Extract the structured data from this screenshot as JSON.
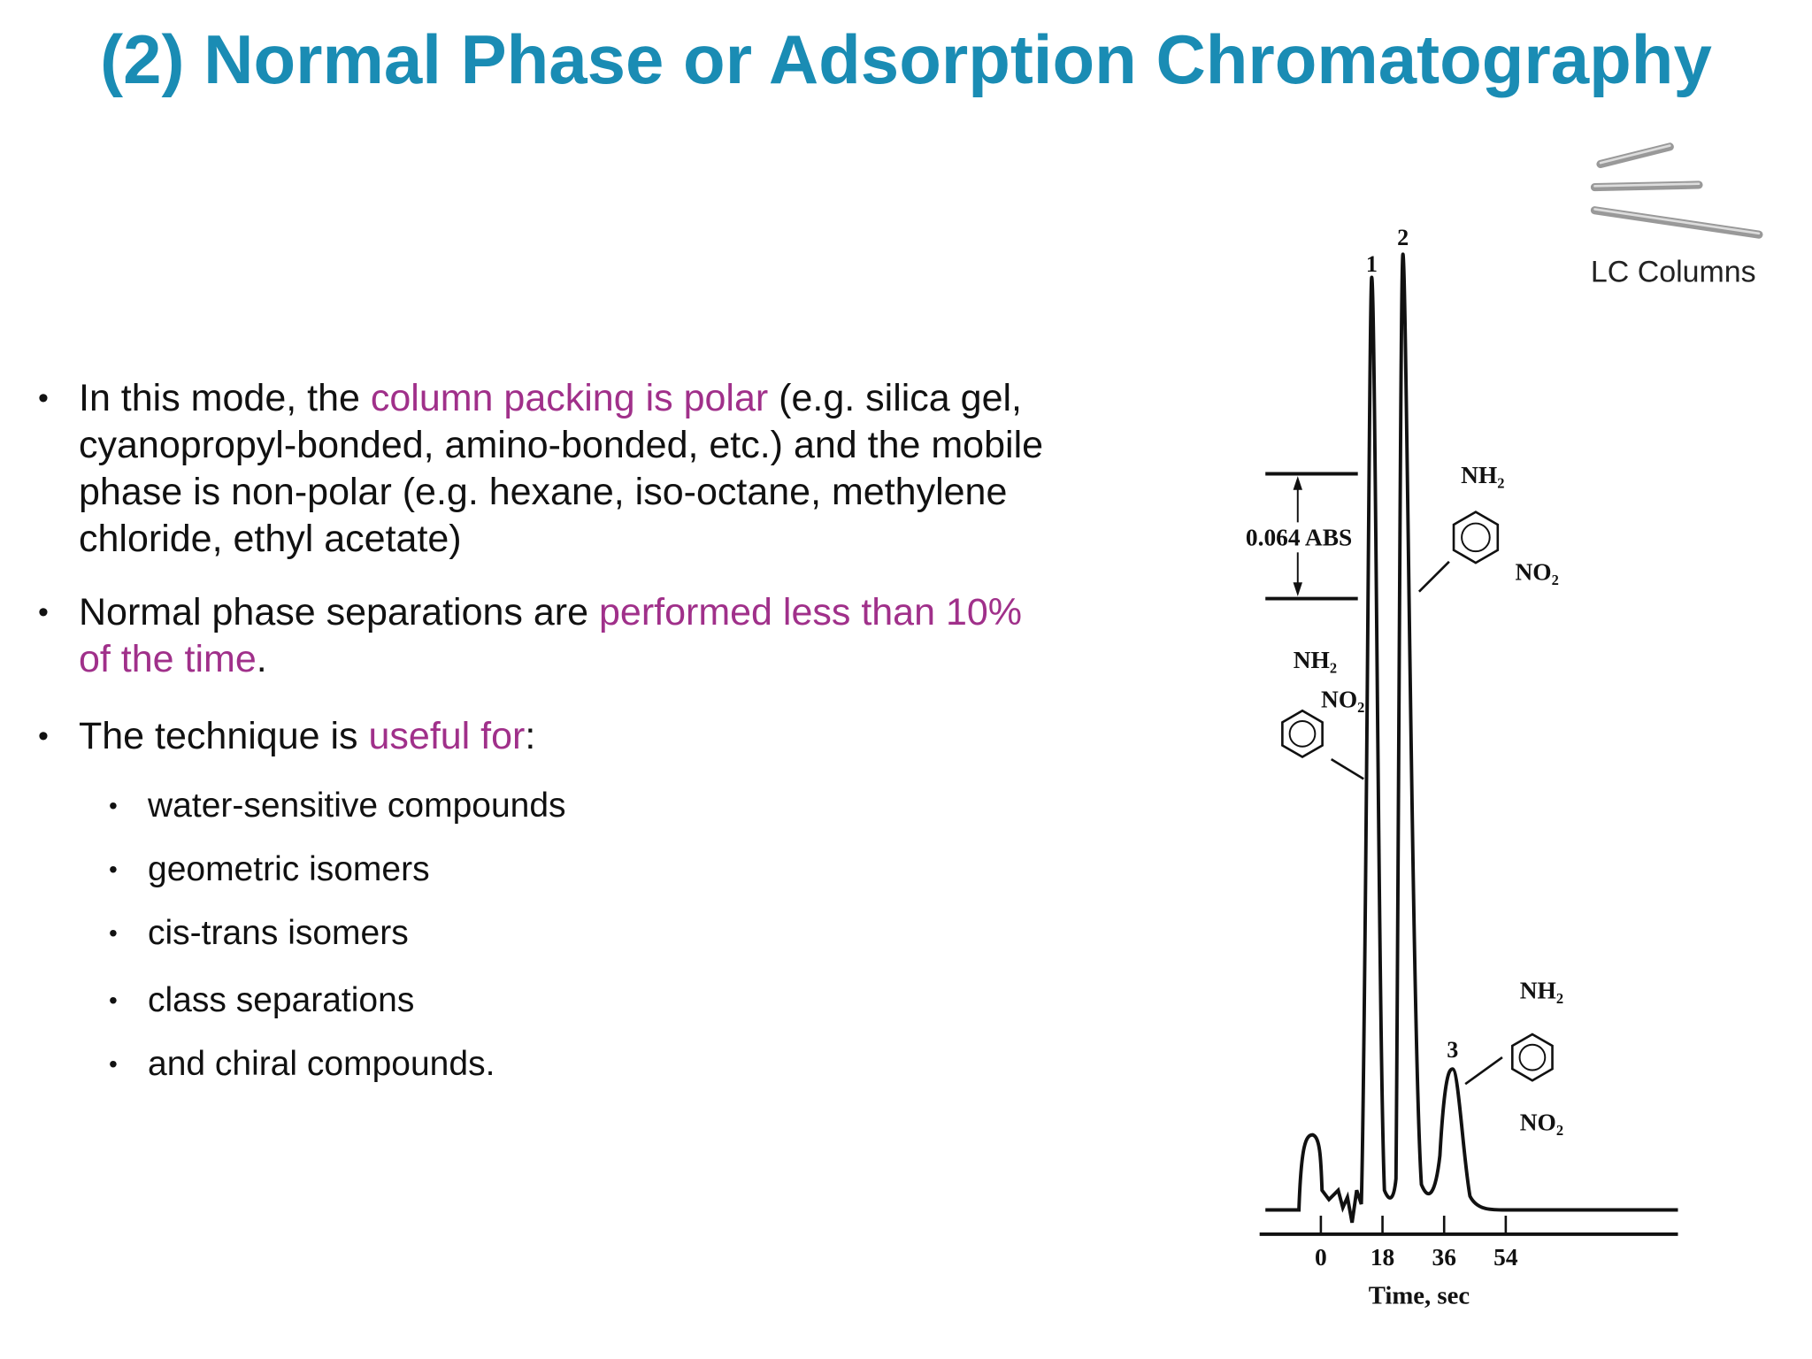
{
  "title": "(2) Normal Phase or Adsorption Chromatography",
  "bullets": [
    {
      "segments": [
        {
          "text": "In this mode, the "
        },
        {
          "text": "column packing is polar",
          "color": "#a0308a"
        },
        {
          "text": " (e.g. silica gel, cyanopropyl-bonded, amino-bonded, etc.) and the mobile phase is non-polar (e.g. hexane, iso-octane, methylene chloride, ethyl acetate)"
        }
      ]
    },
    {
      "segments": [
        {
          "text": "Normal phase separations are "
        },
        {
          "text": "performed less than 10% of the time",
          "color": "#a0308a"
        },
        {
          "text": "."
        }
      ]
    },
    {
      "segments": [
        {
          "text": "The technique is "
        },
        {
          "text": "useful for",
          "color": "#a0308a"
        },
        {
          "text": ":"
        }
      ]
    }
  ],
  "sub_bullets": [
    "water-sensitive compounds",
    "geometric isomers",
    "cis-trans isomers",
    "class separations",
    "and chiral compounds."
  ],
  "figure": {
    "caption": "LC Columns",
    "peak_labels": [
      "1",
      "2",
      "3"
    ],
    "scale_label": "0.064 ABS",
    "xlim": [
      -18,
      104
    ],
    "xticks": [
      0,
      18,
      36,
      54
    ],
    "xlabel": "Time, sec",
    "structures": [
      {
        "groups": [
          "NH₂",
          "NO₂"
        ]
      },
      {
        "groups": [
          "NH₂",
          "NO₂"
        ]
      },
      {
        "groups": [
          "NH₂",
          "NO₂"
        ]
      }
    ]
  }
}
